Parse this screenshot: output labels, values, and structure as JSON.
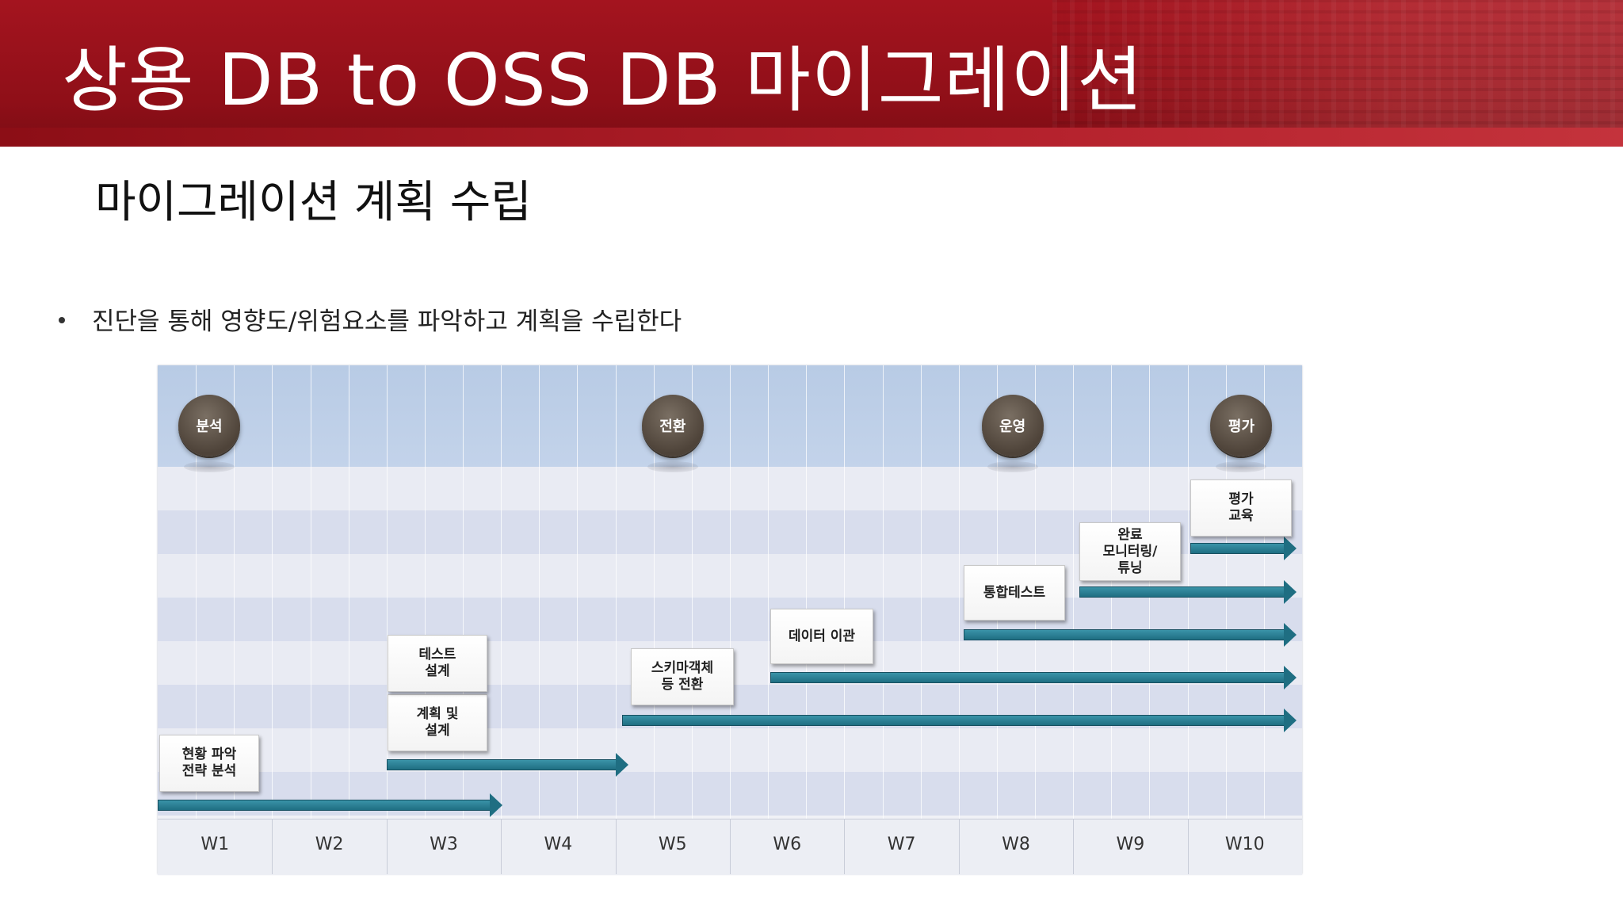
{
  "header": {
    "title": "상용 DB to OSS DB 마이그레이션"
  },
  "section": {
    "title": "마이그레이션 계획 수립"
  },
  "bullet": {
    "text": "진단을 통해 영향도/위험요소를 파악하고 계획을 수립한다"
  },
  "colors": {
    "header_red": "#9b111c",
    "bar_teal": "#2a7f93",
    "milestone_brown": "#5c5046"
  },
  "chart_data": {
    "type": "table",
    "weeks": [
      "W1",
      "W2",
      "W3",
      "W4",
      "W5",
      "W6",
      "W7",
      "W8",
      "W9",
      "W10"
    ],
    "milestones": [
      {
        "label": "분석",
        "week": "W1"
      },
      {
        "label": "전환",
        "week": "W5"
      },
      {
        "label": "운영",
        "week": "W8"
      },
      {
        "label": "평가",
        "week": "W10"
      }
    ],
    "tasks": [
      {
        "label": "현황 파악\n전략 분석",
        "start_week": 1,
        "end_week": 4
      },
      {
        "label": "계획 및\n설계",
        "start_week": 3,
        "end_week": 5
      },
      {
        "label": "테스트\n설계",
        "start_week": 3,
        "end_week": 5
      },
      {
        "label": "스키마객체\n등 전환",
        "start_week": 5,
        "end_week": 10
      },
      {
        "label": "데이터 이관",
        "start_week": 6,
        "end_week": 10
      },
      {
        "label": "통합테스트",
        "start_week": 8,
        "end_week": 10
      },
      {
        "label": "완료\n모니터링/\n튜닝",
        "start_week": 9,
        "end_week": 10
      },
      {
        "label": "평가\n교육",
        "start_week": 10,
        "end_week": 10
      }
    ]
  }
}
